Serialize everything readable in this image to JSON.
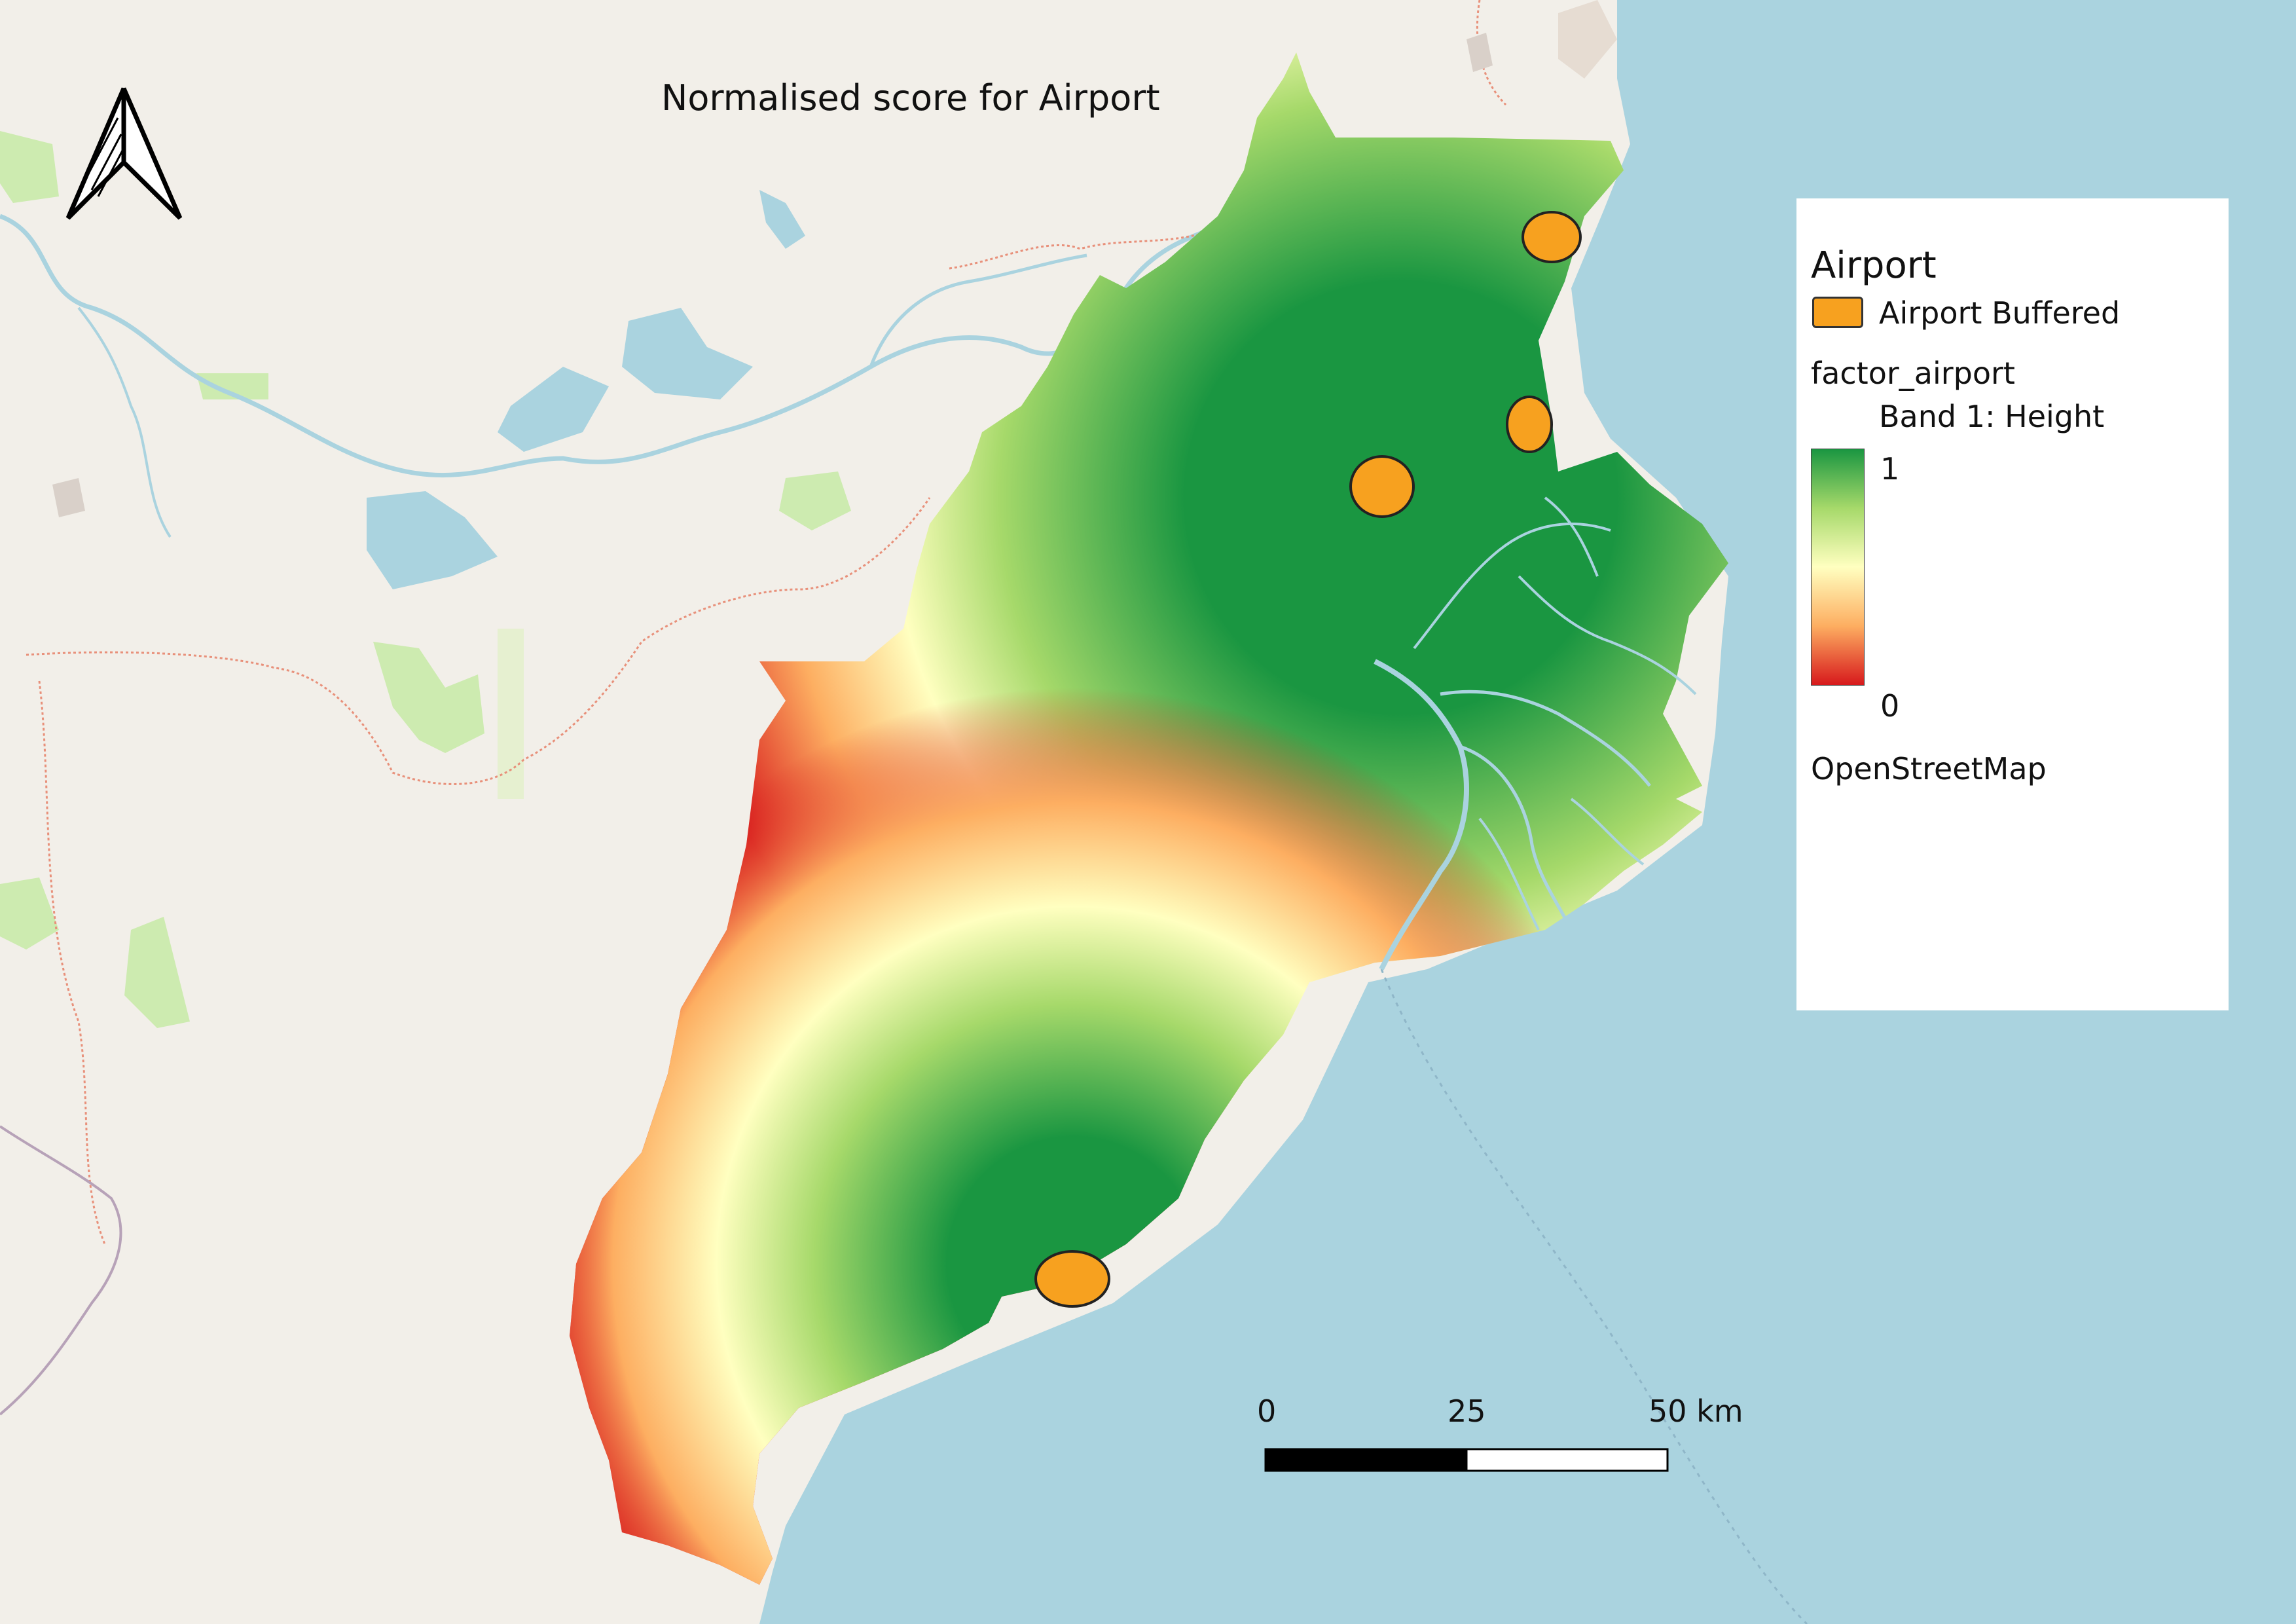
{
  "title": "Normalised score for Airport",
  "legend": {
    "layer_group": "Airport",
    "buffer_item": "Airport Buffered",
    "raster_layer": "factor_airport",
    "band": "Band 1: Height",
    "ramp_max": "1",
    "ramp_min": "0",
    "basemap": "OpenStreetMap"
  },
  "scale_bar": {
    "labels": [
      "0",
      "25",
      "50 km"
    ]
  },
  "colors": {
    "sea": "#aad3df",
    "land": "#f2efe9",
    "score_high": "#1a9641",
    "score_mid": "#ffffc0",
    "score_low": "#d7191c",
    "airport_buffer": "#f7a11f"
  }
}
